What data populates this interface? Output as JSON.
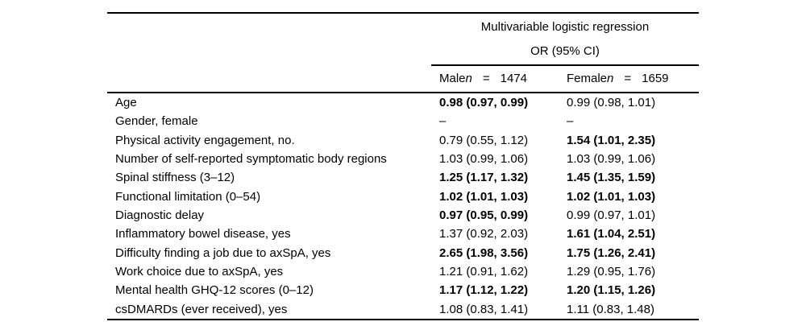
{
  "page": {
    "background": "#ffffff",
    "text_color": "#000000",
    "rule_color": "#000000"
  },
  "table": {
    "spanner_title": "Multivariable logistic regression",
    "spanner_subtitle": "OR (95% CI)",
    "col_male": {
      "label": "Male",
      "n_symbol": "n",
      "equals": "=",
      "count": "1474"
    },
    "col_female": {
      "label": "Female",
      "n_symbol": "n",
      "equals": "=",
      "count": "1659"
    },
    "rows": [
      {
        "label": "Age",
        "male": "0.98 (0.97, 0.99)",
        "male_bold": true,
        "female": "0.99 (0.98, 1.01)",
        "female_bold": false
      },
      {
        "label": "Gender, female",
        "male": "–",
        "male_bold": false,
        "female": "–",
        "female_bold": false
      },
      {
        "label": "Physical activity engagement, no.",
        "male": "0.79 (0.55, 1.12)",
        "male_bold": false,
        "female": "1.54 (1.01, 2.35)",
        "female_bold": true
      },
      {
        "label": "Number of self-reported symptomatic body regions",
        "male": "1.03 (0.99, 1.06)",
        "male_bold": false,
        "female": "1.03 (0.99, 1.06)",
        "female_bold": false
      },
      {
        "label": "Spinal stiffness (3–12)",
        "male": "1.25 (1.17, 1.32)",
        "male_bold": true,
        "female": "1.45 (1.35, 1.59)",
        "female_bold": true
      },
      {
        "label": "Functional limitation (0–54)",
        "male": "1.02 (1.01, 1.03)",
        "male_bold": true,
        "female": "1.02 (1.01, 1.03)",
        "female_bold": true
      },
      {
        "label": "Diagnostic delay",
        "male": "0.97 (0.95, 0.99)",
        "male_bold": true,
        "female": "0.99 (0.97, 1.01)",
        "female_bold": false
      },
      {
        "label": "Inflammatory bowel disease, yes",
        "male": "1.37 (0.92, 2.03)",
        "male_bold": false,
        "female": "1.61 (1.04, 2.51)",
        "female_bold": true
      },
      {
        "label": "Difficulty finding a job due to axSpA, yes",
        "male": "2.65 (1.98, 3.56)",
        "male_bold": true,
        "female": "1.75 (1.26, 2.41)",
        "female_bold": true
      },
      {
        "label": "Work choice due to axSpA, yes",
        "male": "1.21 (0.91, 1.62)",
        "male_bold": false,
        "female": "1.29 (0.95, 1.76)",
        "female_bold": false
      },
      {
        "label": "Mental health GHQ-12 scores (0–12)",
        "male": "1.17 (1.12, 1.22)",
        "male_bold": true,
        "female": "1.20 (1.15, 1.26)",
        "female_bold": true
      },
      {
        "label": "csDMARDs (ever received), yes",
        "male": "1.08 (0.83, 1.41)",
        "male_bold": false,
        "female": "1.11 (0.83, 1.48)",
        "female_bold": false
      }
    ]
  }
}
